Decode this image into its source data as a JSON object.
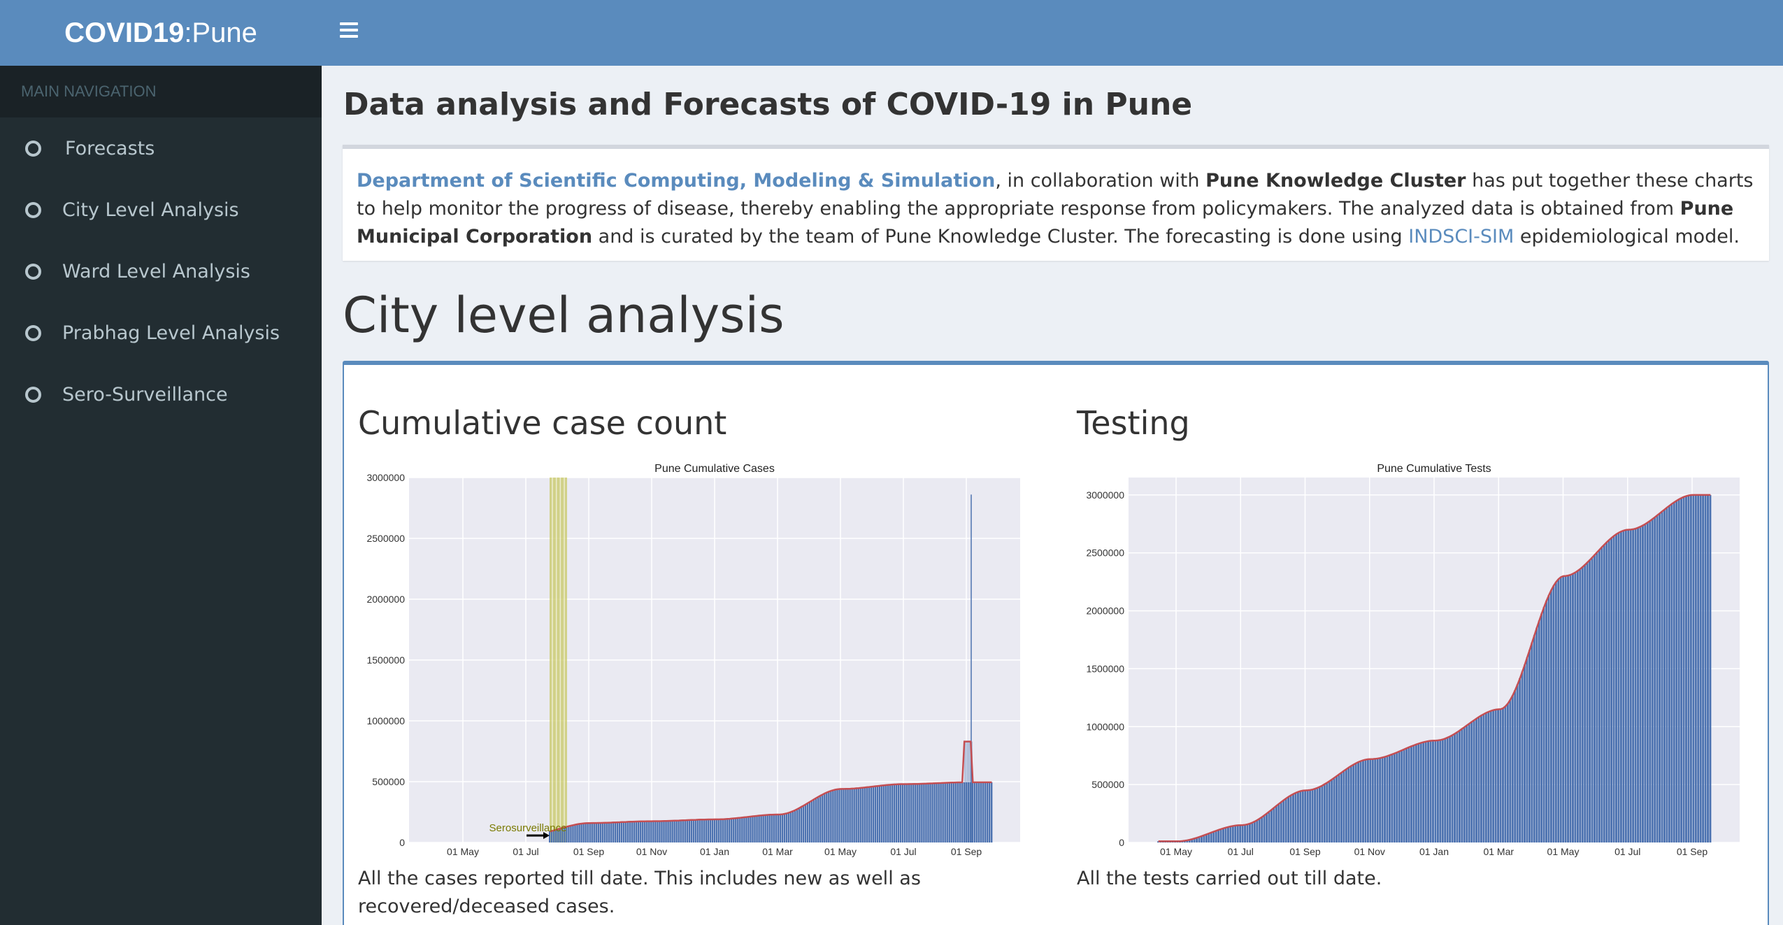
{
  "app": {
    "logo_bold": "COVID19",
    "logo_light": ":Pune"
  },
  "sidebar": {
    "header": "MAIN NAVIGATION",
    "items": [
      {
        "label": "Forecasts"
      },
      {
        "label": "City Level Analysis"
      },
      {
        "label": "Ward Level Analysis"
      },
      {
        "label": "Prabhag Level Analysis"
      },
      {
        "label": "Sero-Surveillance"
      }
    ]
  },
  "main": {
    "title": "Data analysis and Forecasts of COVID-19 in Pune",
    "intro": {
      "dept_link": "Department of Scientific Computing, Modeling & Simulation",
      "t1": ", in collaboration with ",
      "pkc": "Pune Knowledge Cluster",
      "t2": " has put together these charts to help monitor the progress of disease, thereby enabling the appropriate response from policymakers. The analyzed data is obtained from ",
      "pmc": "Pune Municipal Corporation",
      "t3": " and is curated by the team of Pune Knowledge Cluster. The forecasting is done using ",
      "model_link": "INDSCI-SIM",
      "t4": " epidemiological model."
    },
    "section_title": "City level analysis",
    "panels": [
      {
        "heading": "Cumulative case count",
        "caption": "All the cases reported till date. This includes new as well as recovered/deceased cases."
      },
      {
        "heading": "Testing",
        "caption": "All the tests carried out till date."
      }
    ]
  },
  "colors": {
    "header": "#5a8bbd",
    "sidebar": "#222d32",
    "bar": "#4c72b0",
    "line": "#c44e52",
    "plot_bg": "#eaeaf2",
    "sero_band": "#c8c864"
  },
  "chart_data": [
    {
      "type": "bar",
      "title": "Pune Cumulative Cases",
      "x_ticks": [
        "01 May",
        "01 Jul",
        "01 Sep",
        "01 Nov",
        "01 Jan",
        "01 Mar",
        "01 May",
        "01 Jul",
        "01 Sep"
      ],
      "y_ticks": [
        "0",
        "500000",
        "1000000",
        "1500000",
        "2000000",
        "2500000",
        "3000000"
      ],
      "ylim": [
        0,
        3000000
      ],
      "x": [
        "01 May",
        "01 Jul",
        "01 Sep",
        "01 Nov",
        "01 Jan",
        "01 Mar",
        "01 May",
        "01 Jul",
        "01 Sep"
      ],
      "series": [
        {
          "values": [
            2000,
            60000,
            160000,
            175000,
            190000,
            230000,
            440000,
            480000,
            495000
          ]
        }
      ],
      "annotations": [
        {
          "text": "Serosurveillance"
        }
      ],
      "spike_values": [
        830000,
        2860000
      ],
      "grid": true
    },
    {
      "type": "bar",
      "title": "Pune Cumulative Tests",
      "x_ticks": [
        "01 May",
        "01 Jul",
        "01 Sep",
        "01 Nov",
        "01 Jan",
        "01 Mar",
        "01 May",
        "01 Jul",
        "01 Sep"
      ],
      "y_ticks": [
        "0",
        "500000",
        "1000000",
        "1500000",
        "2000000",
        "2500000",
        "3000000"
      ],
      "ylim": [
        0,
        3150000
      ],
      "x": [
        "01 May",
        "01 Jul",
        "01 Sep",
        "01 Nov",
        "01 Jan",
        "01 Mar",
        "01 May",
        "01 Jul",
        "01 Sep"
      ],
      "series": [
        {
          "values": [
            10000,
            150000,
            450000,
            720000,
            880000,
            1150000,
            2300000,
            2700000,
            3000000
          ]
        }
      ],
      "grid": true
    }
  ]
}
